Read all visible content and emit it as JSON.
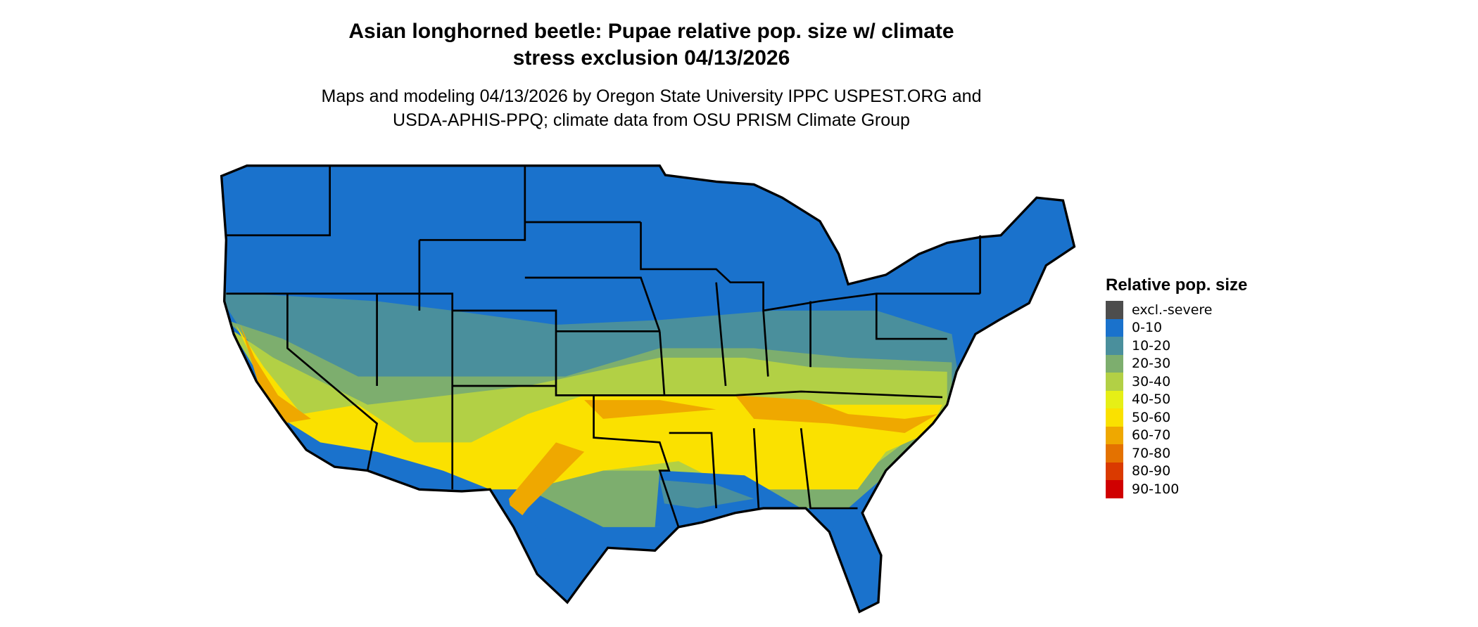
{
  "title_line1": "Asian longhorned beetle: Pupae relative pop. size w/ climate",
  "title_line2": "stress exclusion 04/13/2026",
  "subtitle_line1": "Maps and modeling 04/13/2026 by Oregon State University IPPC USPEST.ORG and",
  "subtitle_line2": "USDA-APHIS-PPQ; climate data from OSU PRISM Climate Group",
  "legend": {
    "title": "Relative pop. size",
    "items": [
      {
        "label": "excl.-severe",
        "color": "#4d4d4d"
      },
      {
        "label": "0-10",
        "color": "#1a72cc"
      },
      {
        "label": "10-20",
        "color": "#4a8f9c"
      },
      {
        "label": "20-30",
        "color": "#7dae6e"
      },
      {
        "label": "30-40",
        "color": "#b2d045"
      },
      {
        "label": "40-50",
        "color": "#e6ef16"
      },
      {
        "label": "50-60",
        "color": "#fae100"
      },
      {
        "label": "60-70",
        "color": "#efa800"
      },
      {
        "label": "70-80",
        "color": "#e47200"
      },
      {
        "label": "80-90",
        "color": "#da3a00"
      },
      {
        "label": "90-100",
        "color": "#d00000"
      }
    ]
  }
}
